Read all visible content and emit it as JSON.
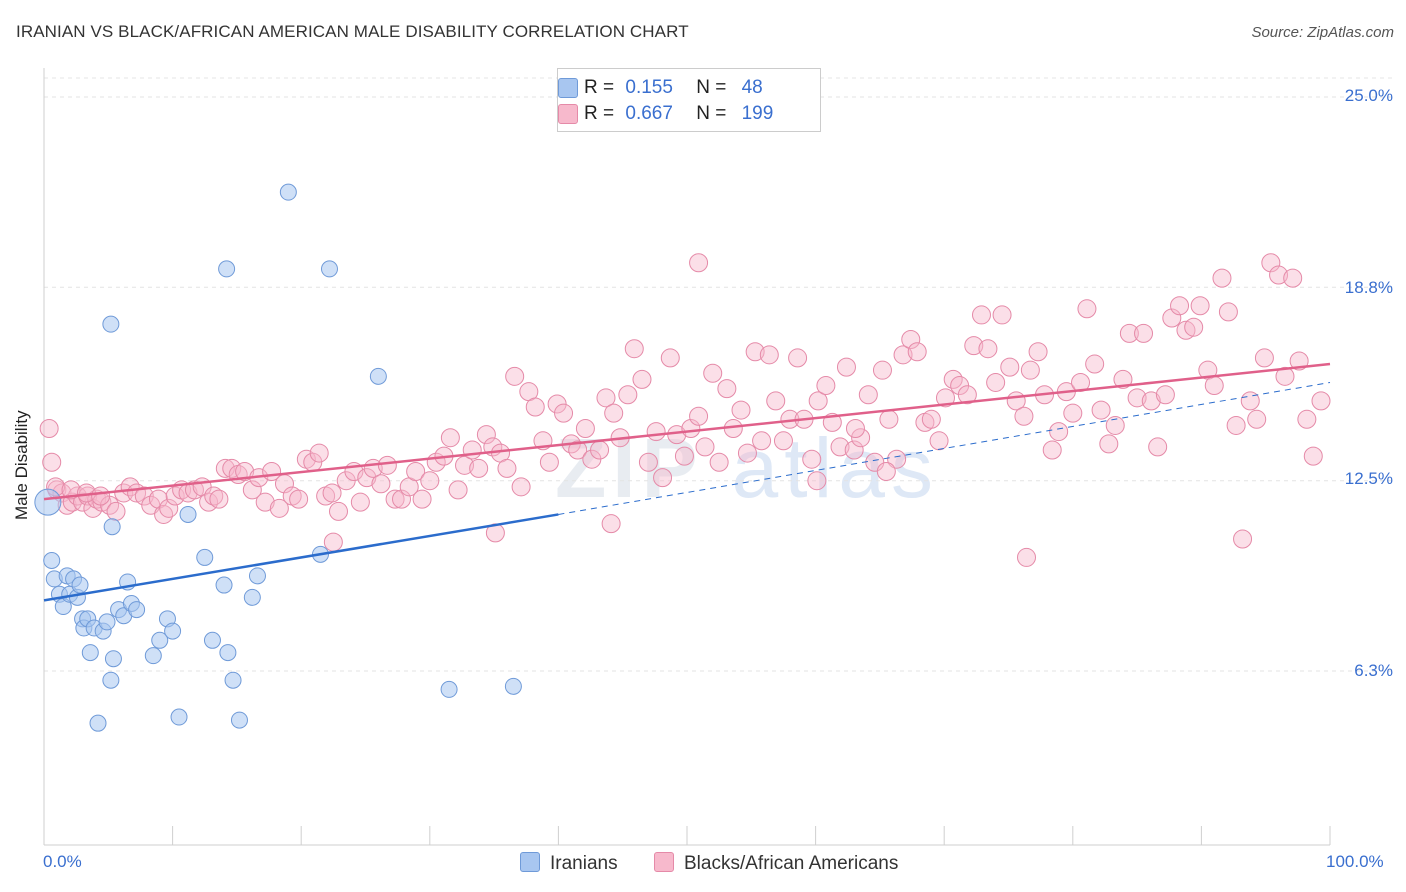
{
  "title": "IRANIAN VS BLACK/AFRICAN AMERICAN MALE DISABILITY CORRELATION CHART",
  "source": "Source: ZipAtlas.com",
  "watermark": {
    "zip": "ZIP",
    "atlas": "atlas"
  },
  "legend": {
    "rows": [
      {
        "r_label": "R =",
        "r_value": "0.155",
        "n_label": "N =",
        "n_value": "48"
      },
      {
        "r_label": "R =",
        "r_value": "0.667",
        "n_label": "N =",
        "n_value": "199"
      }
    ]
  },
  "colors": {
    "iranians_fill": "#a8c6f0",
    "iranians_stroke": "#6f9ad8",
    "iranians_line": "#2b6ccc",
    "blacks_fill": "#f7b9cc",
    "blacks_stroke": "#e58aa8",
    "blacks_line": "#e0608a",
    "tick_text": "#3a6fcf"
  },
  "chart_data": {
    "type": "scatter",
    "title": "IRANIAN VS BLACK/AFRICAN AMERICAN MALE DISABILITY CORRELATION CHART",
    "xlabel": "",
    "ylabel": "Male Disability",
    "xlim": [
      0,
      100
    ],
    "ylim": [
      0,
      25.5
    ],
    "y_ticks": [
      6.3,
      12.5,
      18.8,
      25.0
    ],
    "y_tick_labels": [
      "6.3%",
      "12.5%",
      "18.8%",
      "25.0%"
    ],
    "x_tick_labels": [
      "0.0%",
      "100.0%"
    ],
    "grid": true,
    "legend_position": "top-center",
    "series": [
      {
        "name": "Iranians",
        "r": 0.155,
        "n": 48,
        "trend": {
          "x": [
            0,
            40
          ],
          "y": [
            8.6,
            11.4
          ],
          "dashed_extension_to": [
            100,
            15.7
          ]
        },
        "points": [
          [
            0.3,
            11.8
          ],
          [
            0.6,
            9.9
          ],
          [
            0.8,
            9.3
          ],
          [
            1.2,
            8.8
          ],
          [
            1.5,
            8.4
          ],
          [
            1.8,
            9.4
          ],
          [
            2.0,
            8.8
          ],
          [
            2.3,
            9.3
          ],
          [
            2.6,
            8.7
          ],
          [
            2.8,
            9.1
          ],
          [
            3.0,
            8.0
          ],
          [
            3.1,
            7.7
          ],
          [
            3.4,
            8.0
          ],
          [
            3.6,
            6.9
          ],
          [
            3.9,
            7.7
          ],
          [
            4.2,
            4.6
          ],
          [
            4.6,
            7.6
          ],
          [
            4.9,
            7.9
          ],
          [
            5.2,
            6.0
          ],
          [
            5.4,
            6.7
          ],
          [
            5.8,
            8.3
          ],
          [
            6.2,
            8.1
          ],
          [
            6.5,
            9.2
          ],
          [
            6.8,
            8.5
          ],
          [
            7.2,
            8.3
          ],
          [
            8.5,
            6.8
          ],
          [
            9.0,
            7.3
          ],
          [
            9.6,
            8.0
          ],
          [
            10.0,
            7.6
          ],
          [
            10.5,
            4.8
          ],
          [
            11.2,
            11.4
          ],
          [
            12.5,
            10.0
          ],
          [
            13.1,
            7.3
          ],
          [
            14.0,
            9.1
          ],
          [
            14.3,
            6.9
          ],
          [
            14.7,
            6.0
          ],
          [
            15.2,
            4.7
          ],
          [
            16.2,
            8.7
          ],
          [
            16.6,
            9.4
          ],
          [
            19.0,
            21.9
          ],
          [
            21.5,
            10.1
          ],
          [
            22.2,
            19.4
          ],
          [
            14.2,
            19.4
          ],
          [
            5.2,
            17.6
          ],
          [
            26.0,
            15.9
          ],
          [
            31.5,
            5.7
          ],
          [
            36.5,
            5.8
          ],
          [
            5.3,
            11.0
          ]
        ]
      },
      {
        "name": "Blacks/African Americans",
        "r": 0.667,
        "n": 199,
        "trend": {
          "x": [
            0,
            100
          ],
          "y": [
            11.9,
            16.3
          ]
        },
        "points": [
          [
            0.4,
            14.2
          ],
          [
            0.6,
            13.1
          ],
          [
            1.0,
            12.2
          ],
          [
            1.4,
            12.1
          ],
          [
            1.8,
            11.7
          ],
          [
            2.2,
            11.8
          ],
          [
            2.6,
            12.0
          ],
          [
            3.0,
            11.8
          ],
          [
            3.4,
            12.0
          ],
          [
            3.8,
            11.6
          ],
          [
            4.1,
            11.9
          ],
          [
            4.5,
            11.8
          ],
          [
            5.1,
            11.7
          ],
          [
            5.6,
            11.5
          ],
          [
            6.2,
            12.1
          ],
          [
            6.7,
            12.3
          ],
          [
            7.2,
            12.1
          ],
          [
            7.8,
            12.0
          ],
          [
            8.3,
            11.7
          ],
          [
            8.9,
            11.9
          ],
          [
            9.3,
            11.4
          ],
          [
            9.7,
            11.6
          ],
          [
            10.2,
            12.0
          ],
          [
            10.7,
            12.2
          ],
          [
            11.2,
            12.1
          ],
          [
            11.7,
            12.2
          ],
          [
            12.3,
            12.3
          ],
          [
            12.8,
            11.8
          ],
          [
            13.2,
            12.0
          ],
          [
            13.6,
            11.9
          ],
          [
            14.1,
            12.9
          ],
          [
            14.6,
            12.9
          ],
          [
            15.1,
            12.7
          ],
          [
            15.6,
            12.8
          ],
          [
            16.2,
            12.2
          ],
          [
            16.7,
            12.6
          ],
          [
            17.2,
            11.8
          ],
          [
            17.7,
            12.8
          ],
          [
            18.3,
            11.6
          ],
          [
            18.7,
            12.4
          ],
          [
            19.3,
            12.0
          ],
          [
            19.8,
            11.9
          ],
          [
            20.4,
            13.2
          ],
          [
            20.9,
            13.1
          ],
          [
            21.4,
            13.4
          ],
          [
            21.9,
            12.0
          ],
          [
            22.4,
            12.1
          ],
          [
            22.9,
            11.5
          ],
          [
            23.5,
            12.5
          ],
          [
            24.1,
            12.8
          ],
          [
            24.6,
            11.8
          ],
          [
            25.1,
            12.6
          ],
          [
            25.6,
            12.9
          ],
          [
            26.2,
            12.4
          ],
          [
            26.7,
            13.0
          ],
          [
            27.3,
            11.9
          ],
          [
            27.8,
            11.9
          ],
          [
            28.4,
            12.3
          ],
          [
            28.9,
            12.8
          ],
          [
            29.4,
            11.9
          ],
          [
            30.0,
            12.5
          ],
          [
            30.5,
            13.1
          ],
          [
            31.1,
            13.3
          ],
          [
            31.6,
            13.9
          ],
          [
            32.2,
            12.2
          ],
          [
            32.7,
            13.0
          ],
          [
            33.3,
            13.5
          ],
          [
            33.8,
            12.9
          ],
          [
            34.4,
            14.0
          ],
          [
            34.9,
            13.6
          ],
          [
            35.5,
            13.4
          ],
          [
            36.0,
            12.9
          ],
          [
            36.6,
            15.9
          ],
          [
            37.1,
            12.3
          ],
          [
            37.7,
            15.4
          ],
          [
            38.2,
            14.9
          ],
          [
            38.8,
            13.8
          ],
          [
            39.3,
            13.1
          ],
          [
            39.9,
            15.0
          ],
          [
            40.4,
            14.7
          ],
          [
            41.0,
            13.7
          ],
          [
            41.5,
            13.5
          ],
          [
            42.1,
            14.2
          ],
          [
            42.6,
            13.2
          ],
          [
            43.2,
            13.5
          ],
          [
            43.7,
            15.2
          ],
          [
            44.3,
            14.7
          ],
          [
            44.8,
            13.9
          ],
          [
            45.4,
            15.3
          ],
          [
            45.9,
            16.8
          ],
          [
            46.5,
            15.8
          ],
          [
            47.0,
            13.1
          ],
          [
            47.6,
            14.1
          ],
          [
            48.1,
            12.6
          ],
          [
            48.7,
            16.5
          ],
          [
            49.2,
            14.0
          ],
          [
            49.8,
            13.3
          ],
          [
            50.3,
            14.2
          ],
          [
            50.9,
            14.6
          ],
          [
            51.4,
            13.6
          ],
          [
            52.0,
            16.0
          ],
          [
            52.5,
            13.1
          ],
          [
            53.1,
            15.5
          ],
          [
            53.6,
            14.2
          ],
          [
            54.2,
            14.8
          ],
          [
            54.7,
            13.4
          ],
          [
            55.3,
            16.7
          ],
          [
            55.8,
            13.8
          ],
          [
            56.4,
            16.6
          ],
          [
            56.9,
            15.1
          ],
          [
            57.5,
            13.8
          ],
          [
            58.0,
            14.5
          ],
          [
            58.6,
            16.5
          ],
          [
            59.1,
            14.5
          ],
          [
            59.7,
            13.2
          ],
          [
            60.2,
            15.1
          ],
          [
            60.8,
            15.6
          ],
          [
            61.3,
            14.4
          ],
          [
            61.9,
            13.6
          ],
          [
            62.4,
            16.2
          ],
          [
            63.0,
            13.5
          ],
          [
            63.5,
            13.9
          ],
          [
            64.1,
            15.3
          ],
          [
            64.6,
            13.1
          ],
          [
            65.2,
            16.1
          ],
          [
            65.7,
            14.5
          ],
          [
            66.3,
            13.2
          ],
          [
            66.8,
            16.6
          ],
          [
            67.4,
            17.1
          ],
          [
            67.9,
            16.7
          ],
          [
            68.5,
            14.4
          ],
          [
            69.0,
            14.5
          ],
          [
            69.6,
            13.8
          ],
          [
            70.1,
            15.2
          ],
          [
            70.7,
            15.8
          ],
          [
            71.2,
            15.6
          ],
          [
            71.8,
            15.3
          ],
          [
            72.3,
            16.9
          ],
          [
            72.9,
            17.9
          ],
          [
            73.4,
            16.8
          ],
          [
            74.0,
            15.7
          ],
          [
            74.5,
            17.9
          ],
          [
            75.1,
            16.2
          ],
          [
            75.6,
            15.1
          ],
          [
            76.2,
            14.6
          ],
          [
            76.7,
            16.1
          ],
          [
            77.3,
            16.7
          ],
          [
            77.8,
            15.3
          ],
          [
            78.4,
            13.5
          ],
          [
            78.9,
            14.1
          ],
          [
            79.5,
            15.4
          ],
          [
            80.0,
            14.7
          ],
          [
            80.6,
            15.7
          ],
          [
            81.1,
            18.1
          ],
          [
            81.7,
            16.3
          ],
          [
            82.2,
            14.8
          ],
          [
            82.8,
            13.7
          ],
          [
            83.3,
            14.3
          ],
          [
            83.9,
            15.8
          ],
          [
            84.4,
            17.3
          ],
          [
            85.0,
            15.2
          ],
          [
            85.5,
            17.3
          ],
          [
            86.1,
            15.1
          ],
          [
            86.6,
            13.6
          ],
          [
            87.2,
            15.3
          ],
          [
            87.7,
            17.8
          ],
          [
            88.3,
            18.2
          ],
          [
            88.8,
            17.4
          ],
          [
            89.4,
            17.5
          ],
          [
            89.9,
            18.2
          ],
          [
            90.5,
            16.1
          ],
          [
            91.0,
            15.6
          ],
          [
            91.6,
            19.1
          ],
          [
            92.1,
            18.0
          ],
          [
            92.7,
            14.3
          ],
          [
            93.2,
            10.6
          ],
          [
            93.8,
            15.1
          ],
          [
            94.3,
            14.5
          ],
          [
            94.9,
            16.5
          ],
          [
            95.4,
            19.6
          ],
          [
            96.0,
            19.2
          ],
          [
            96.5,
            15.9
          ],
          [
            97.1,
            19.1
          ],
          [
            97.6,
            16.4
          ],
          [
            98.2,
            14.5
          ],
          [
            98.7,
            13.3
          ],
          [
            99.3,
            15.1
          ],
          [
            22.5,
            10.5
          ],
          [
            35.1,
            10.8
          ],
          [
            44.1,
            11.1
          ],
          [
            76.4,
            10.0
          ],
          [
            50.9,
            19.6
          ],
          [
            0.9,
            12.3
          ],
          [
            2.1,
            12.2
          ],
          [
            3.3,
            12.1
          ],
          [
            4.4,
            12.0
          ],
          [
            60.1,
            12.5
          ],
          [
            63.1,
            14.2
          ],
          [
            65.5,
            12.8
          ]
        ]
      }
    ]
  },
  "bottom_legend": [
    "Iranians",
    "Blacks/African Americans"
  ]
}
